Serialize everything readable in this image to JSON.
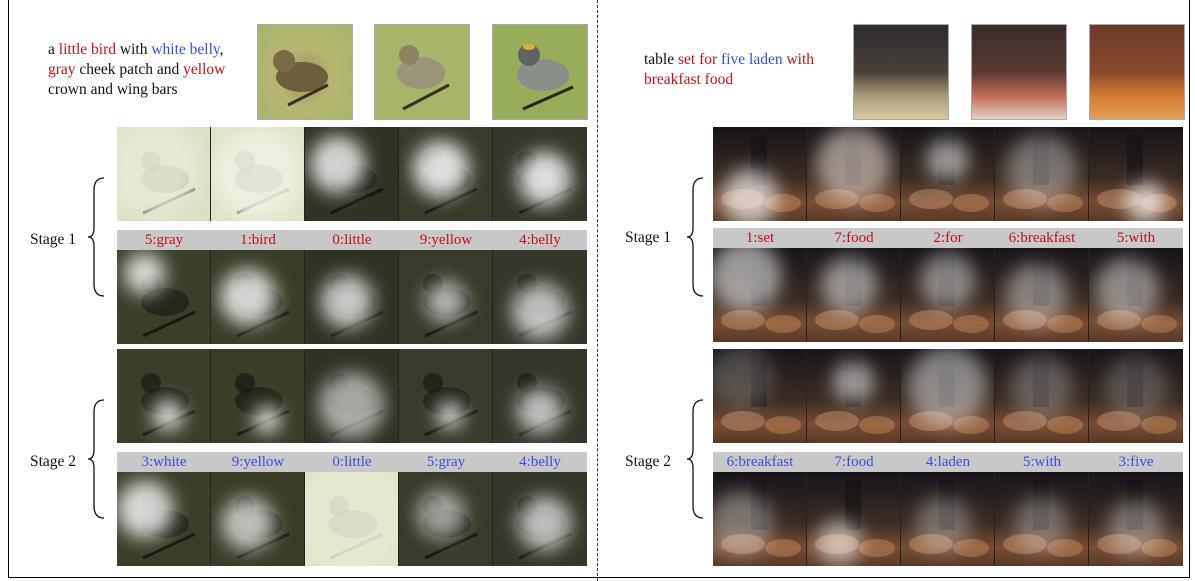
{
  "left": {
    "caption": {
      "line1": [
        {
          "t": "a ",
          "c": "k"
        },
        {
          "t": "little bird",
          "c": "r"
        },
        {
          "t": " with ",
          "c": "k"
        },
        {
          "t": "white belly",
          "c": "b"
        },
        {
          "t": ",",
          "c": "k"
        }
      ],
      "line2": [
        {
          "t": "gray",
          "c": "r"
        },
        {
          "t": " cheek patch and ",
          "c": "k"
        },
        {
          "t": "yellow",
          "c": "r"
        }
      ],
      "line3": [
        {
          "t": "crown and wing bars",
          "c": "k"
        }
      ]
    },
    "stage1": {
      "label": "Stage 1",
      "words": [
        "5:gray",
        "1:bird",
        "0:little",
        "9:yellow",
        "4:belly"
      ],
      "color": "#c0121c"
    },
    "stage2": {
      "label": "Stage 2",
      "words": [
        "3:white",
        "9:yellow",
        "0:little",
        "5:gray",
        "4:belly"
      ],
      "color": "#3a4fe0"
    }
  },
  "right": {
    "caption": {
      "line1": [
        {
          "t": "table ",
          "c": "k"
        },
        {
          "t": "set for ",
          "c": "r"
        },
        {
          "t": "five laden",
          "c": "b"
        },
        {
          "t": " with",
          "c": "r"
        }
      ],
      "line2": [
        {
          "t": "breakfast food",
          "c": "r"
        }
      ]
    },
    "stage1": {
      "label": "Stage 1",
      "words": [
        "1:set",
        "7:food",
        "2:for",
        "6:breakfast",
        "5:with"
      ],
      "color": "#c0121c"
    },
    "stage2": {
      "label": "Stage 2",
      "words": [
        "6:breakfast",
        "7:food",
        "4:laden",
        "5:with",
        "3:five"
      ],
      "color": "#3a4fe0"
    }
  }
}
